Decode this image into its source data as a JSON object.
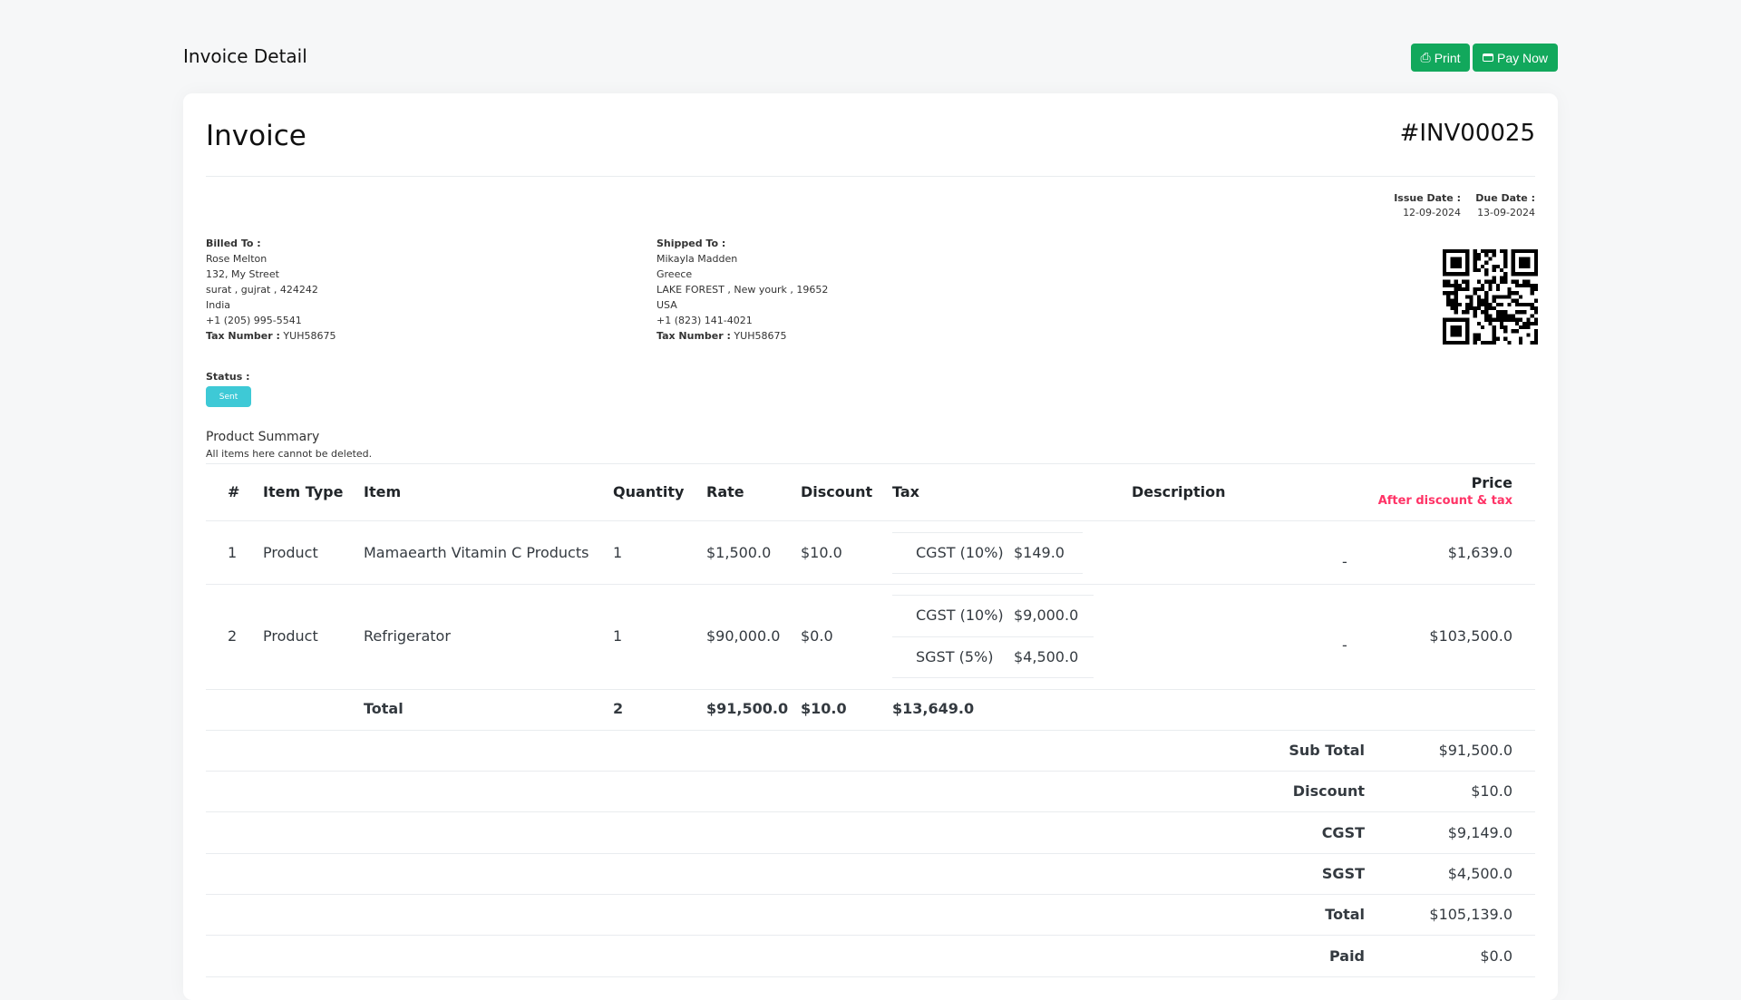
{
  "header": {
    "title": "Invoice Detail",
    "print_label": "Print",
    "pay_label": "Pay Now"
  },
  "invoice": {
    "heading": "Invoice",
    "number": "#INV00025",
    "issue_date_label": "Issue Date :",
    "issue_date": "12-09-2024",
    "due_date_label": "Due Date :",
    "due_date": "13-09-2024",
    "billed": {
      "label": "Billed To :",
      "lines": [
        "Rose Melton",
        "132, My Street",
        "surat , gujrat , 424242",
        "India",
        "+1 (205) 995-5541"
      ],
      "tax_label": "Tax Number :",
      "tax": "YUH58675"
    },
    "shipped": {
      "label": "Shipped To :",
      "lines": [
        "Mikayla Madden",
        "Greece",
        "LAKE FOREST , New yourk , 19652",
        "USA",
        "+1 (823) 141-4021"
      ],
      "tax_label": "Tax Number :",
      "tax": "YUH58675"
    },
    "status_label": "Status :",
    "status": "Sent",
    "status_color": "#3ec9d6"
  },
  "summary": {
    "title": "Product Summary",
    "subtitle": "All items here cannot be deleted."
  },
  "table": {
    "headers": [
      "#",
      "Item Type",
      "Item",
      "Quantity",
      "Rate",
      "Discount",
      "Tax",
      "Description",
      "Price"
    ],
    "price_note": "After discount & tax",
    "rows": [
      {
        "num": "1",
        "type": "Product",
        "item": "Mamaearth Vitamin C Products",
        "qty": "1",
        "rate": "$1,500.0",
        "discount": "$10.0",
        "taxes": [
          {
            "name": "CGST (10%)",
            "amount": "$149.0"
          }
        ],
        "description": "-",
        "price": "$1,639.0"
      },
      {
        "num": "2",
        "type": "Product",
        "item": "Refrigerator",
        "qty": "1",
        "rate": "$90,000.0",
        "discount": "$0.0",
        "taxes": [
          {
            "name": "CGST (10%)",
            "amount": "$9,000.0"
          },
          {
            "name": "SGST (5%)",
            "amount": "$4,500.0"
          }
        ],
        "description": "-",
        "price": "$103,500.0"
      }
    ],
    "total": {
      "label": "Total",
      "qty": "2",
      "rate": "$91,500.0",
      "discount": "$10.0",
      "tax": "$13,649.0"
    }
  },
  "totals": [
    {
      "label": "Sub Total",
      "value": "$91,500.0"
    },
    {
      "label": "Discount",
      "value": "$10.0"
    },
    {
      "label": "CGST",
      "value": "$9,149.0"
    },
    {
      "label": "SGST",
      "value": "$4,500.0"
    },
    {
      "label": "Total",
      "value": "$105,139.0"
    },
    {
      "label": "Paid",
      "value": "$0.0"
    }
  ],
  "colors": {
    "accent": "#12a85c",
    "note": "#ff3366"
  }
}
